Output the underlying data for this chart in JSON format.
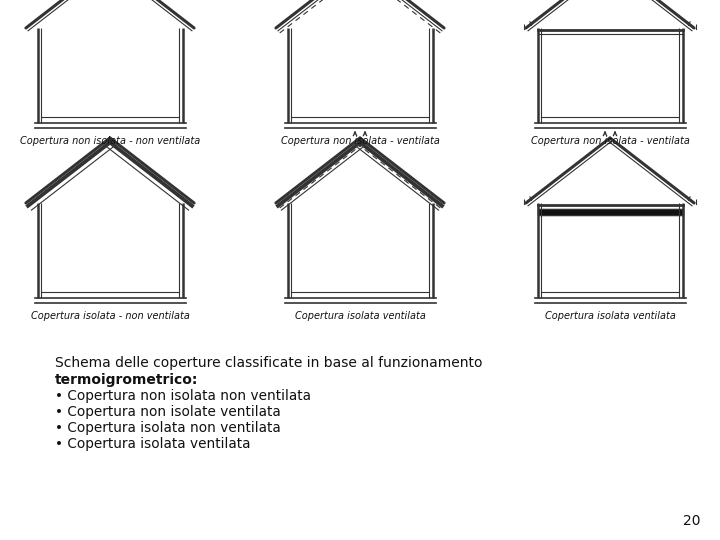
{
  "background_color": "#ffffff",
  "text_color": "#111111",
  "title_line1": "Schema delle coperture classificate in base al funzionamento",
  "title_line2_bold": "termoigrometrico:",
  "bullets": [
    "Copertura non isolata non ventilata",
    "Copertura non isolate ventilata",
    "Copertura isolata non ventilata",
    "Copertura isolata ventilata"
  ],
  "page_number": "20",
  "houses": [
    {
      "label": "Copertura non isolata - non ventilata",
      "row": 0,
      "col": 0,
      "ventilated": false,
      "insulated": false,
      "flat_ceiling": false
    },
    {
      "label": "Copertura non isolata - ventilata",
      "row": 0,
      "col": 1,
      "ventilated": true,
      "insulated": false,
      "flat_ceiling": false
    },
    {
      "label": "Copertura non isolata - ventilata",
      "row": 0,
      "col": 2,
      "ventilated": true,
      "insulated": false,
      "flat_ceiling": true
    },
    {
      "label": "Copertura isolata - non ventilata",
      "row": 1,
      "col": 0,
      "ventilated": false,
      "insulated": true,
      "flat_ceiling": false
    },
    {
      "label": "Copertura isolata ventilata",
      "row": 1,
      "col": 1,
      "ventilated": true,
      "insulated": true,
      "flat_ceiling": false
    },
    {
      "label": "Copertura isolata ventilata",
      "row": 1,
      "col": 2,
      "ventilated": true,
      "insulated": true,
      "flat_ceiling": true
    }
  ]
}
